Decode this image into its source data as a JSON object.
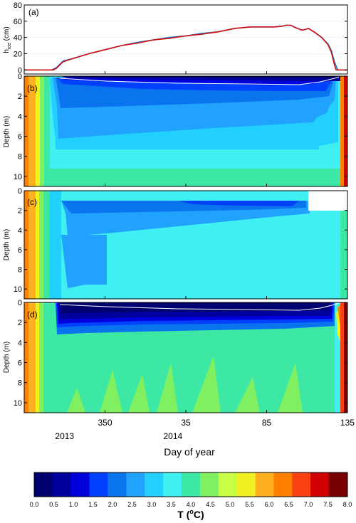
{
  "chart_data": [
    {
      "type": "line",
      "panel_label": "(a)",
      "ylabel": "h",
      "ylabel_sub": "ice",
      "ylabel_unit": " (cm)",
      "ylim": [
        -5,
        80
      ],
      "yticks": [
        0,
        20,
        40,
        60,
        80
      ],
      "xlim": [
        300,
        500
      ],
      "series": [
        {
          "color": "#d01010",
          "x": [
            300,
            318,
            320,
            322,
            324,
            330,
            340,
            350,
            360,
            370,
            380,
            390,
            400,
            410,
            420,
            430,
            440,
            450,
            455,
            460,
            462,
            465,
            468,
            472,
            476,
            480,
            484,
            488,
            490,
            492,
            493,
            500
          ],
          "y": [
            0,
            0,
            2,
            6,
            10,
            14,
            20,
            25,
            30,
            33,
            37,
            39,
            42,
            44,
            47,
            51,
            53,
            53,
            53,
            54,
            55,
            55,
            52,
            49,
            51,
            46,
            40,
            31,
            22,
            6,
            0,
            0
          ]
        },
        {
          "color": "#2070d0",
          "x": [
            317,
            320,
            322,
            324,
            330,
            340,
            350,
            360,
            370,
            380,
            390,
            400,
            410,
            420,
            430,
            440,
            450,
            455,
            460,
            462,
            465,
            468,
            472,
            476,
            480,
            484,
            488,
            490,
            492,
            494
          ],
          "y": [
            0,
            3,
            7,
            11,
            14,
            20,
            25,
            30,
            34,
            37,
            40,
            42,
            45,
            47,
            51,
            53,
            53,
            53,
            54,
            55,
            55,
            52,
            49,
            51,
            46,
            40,
            32,
            24,
            10,
            0
          ]
        }
      ]
    },
    {
      "type": "heatmap",
      "panel_label": "(b)",
      "ylabel": "Depth (m)",
      "ylim": [
        11,
        0
      ],
      "yticks": [
        0,
        2,
        4,
        6,
        8,
        10
      ],
      "ice_line": true
    },
    {
      "type": "heatmap",
      "panel_label": "(c)",
      "ylabel": "Depth (m)",
      "ylim": [
        11,
        0
      ],
      "yticks": [
        0,
        2,
        4,
        6,
        8,
        10
      ],
      "ice_line": false
    },
    {
      "type": "heatmap",
      "panel_label": "(d)",
      "ylabel": "Depth (m)",
      "ylim": [
        11,
        0
      ],
      "yticks": [
        0,
        2,
        4,
        6,
        8,
        10
      ],
      "ice_line": true
    }
  ],
  "x_axis": {
    "xlabel": "Day of year",
    "ticks": [
      {
        "day": 350,
        "label": "350"
      },
      {
        "day": 400,
        "label": "35"
      },
      {
        "day": 450,
        "label": "85"
      },
      {
        "day": 500,
        "label": "135"
      }
    ],
    "years": [
      {
        "day": 325,
        "label": "2013"
      },
      {
        "day": 392,
        "label": "2014"
      }
    ]
  },
  "colorbar": {
    "title": "T (",
    "title_sup": "o",
    "title_end": "C)",
    "levels": [
      "0.0",
      "0.5",
      "1.0",
      "1.5",
      "2.0",
      "2.5",
      "3.0",
      "3.5",
      "4.0",
      "4.5",
      "5.0",
      "5.5",
      "6.0",
      "6.5",
      "7.0",
      "7.5",
      "8.0"
    ],
    "colors": [
      "#000070",
      "#00009e",
      "#0000dc",
      "#0040ff",
      "#0a74ee",
      "#22a2ff",
      "#22d0ff",
      "#40f0f0",
      "#3ce8a4",
      "#80f060",
      "#c8ff44",
      "#f0f020",
      "#ffb020",
      "#ff8000",
      "#f84010",
      "#d00000",
      "#780000"
    ]
  }
}
